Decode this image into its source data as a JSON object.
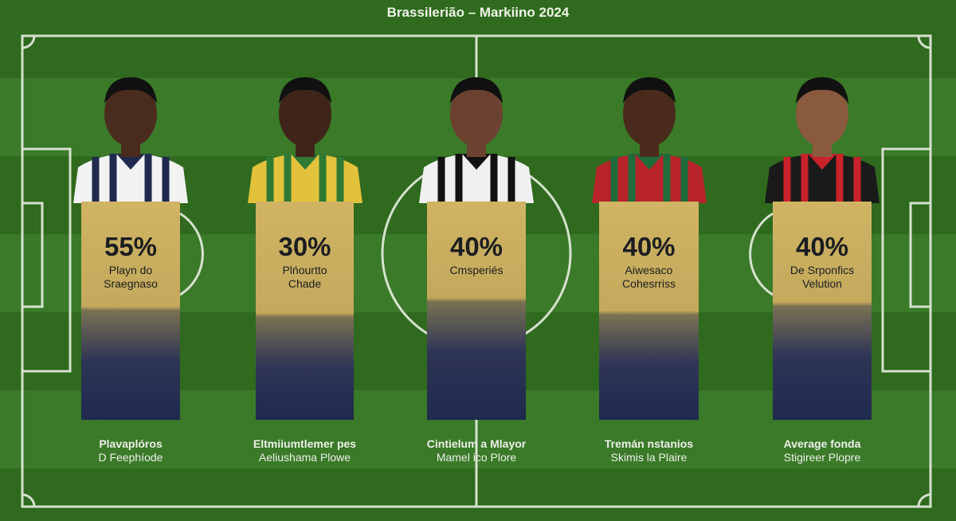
{
  "title": "Brassilerião – Markiino 2024",
  "players": [
    {
      "percent": "55%",
      "label": [
        "Playn do",
        "Sraegnaso"
      ],
      "footer": [
        "Plavaplóros",
        "D Feephíode"
      ],
      "jersey": "#f2f2f2",
      "stripe": "#1f2a4e",
      "skin": "#4a2c1e",
      "gold_fraction": 0.48
    },
    {
      "percent": "30%",
      "label": [
        "Plńourtto",
        "Chade"
      ],
      "footer": [
        "Eltmiiumtlemer pes",
        "Aeliushama Plowe"
      ],
      "jersey": "#e2c23a",
      "stripe": "#2f7a33",
      "skin": "#3f2519",
      "gold_fraction": 0.51
    },
    {
      "percent": "40%",
      "label": [
        "Cmsperiés"
      ],
      "footer": [
        "Cintielum a Mlayor",
        "Mamel ico Plore"
      ],
      "jersey": "#f0f0f0",
      "stripe": "#111111",
      "skin": "#6b4130",
      "gold_fraction": 0.44
    },
    {
      "percent": "40%",
      "label": [
        "Aiwesaco",
        "Cohesrriss"
      ],
      "footer": [
        "Tremán nstanios",
        "Skimis la Plaire"
      ],
      "jersey": "#b8232a",
      "stripe": "#1f6b3a",
      "skin": "#4a2a1c",
      "gold_fraction": 0.5
    },
    {
      "percent": "40%",
      "label": [
        "De Srponfics",
        "Velution"
      ],
      "footer": [
        "Average fonda",
        "Stigireer Plopre"
      ],
      "jersey": "#1a1a1a",
      "stripe": "#c8222a",
      "skin": "#8a5a3e",
      "gold_fraction": 0.46
    }
  ]
}
